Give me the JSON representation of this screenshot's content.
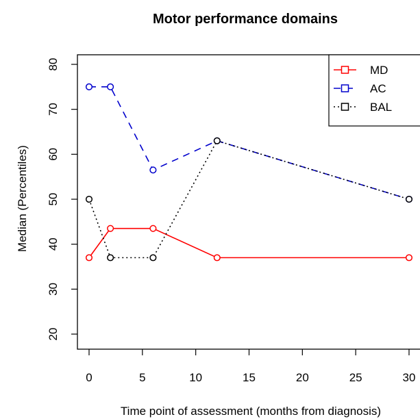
{
  "chart_data": {
    "type": "line",
    "title": "Motor performance domains",
    "xlabel": "Time point of assessment (months from diagnosis)",
    "ylabel": "Median (Percentiles)",
    "xlim": [
      0,
      30
    ],
    "ylim": [
      20,
      80
    ],
    "x_ticks": [
      "0",
      "5",
      "10",
      "15",
      "20",
      "25",
      "30"
    ],
    "y_ticks": [
      "20",
      "30",
      "40",
      "50",
      "60",
      "70",
      "80"
    ],
    "x": [
      0,
      2,
      6,
      12,
      30
    ],
    "series": [
      {
        "name": "MD",
        "values": [
          37,
          43.5,
          43.5,
          37,
          37
        ],
        "color": "#ff0000",
        "line_style": "solid",
        "marker": "circle-open"
      },
      {
        "name": "AC",
        "values": [
          75,
          75,
          56.5,
          63,
          50
        ],
        "color": "#0000cc",
        "line_style": "dashed",
        "marker": "circle-open"
      },
      {
        "name": "BAL",
        "values": [
          50,
          37,
          37,
          63,
          50
        ],
        "color": "#000000",
        "line_style": "dotted",
        "marker": "circle-open"
      }
    ],
    "legend": {
      "position": "top-right",
      "entries": [
        "MD",
        "AC",
        "BAL"
      ]
    },
    "grid": false
  }
}
